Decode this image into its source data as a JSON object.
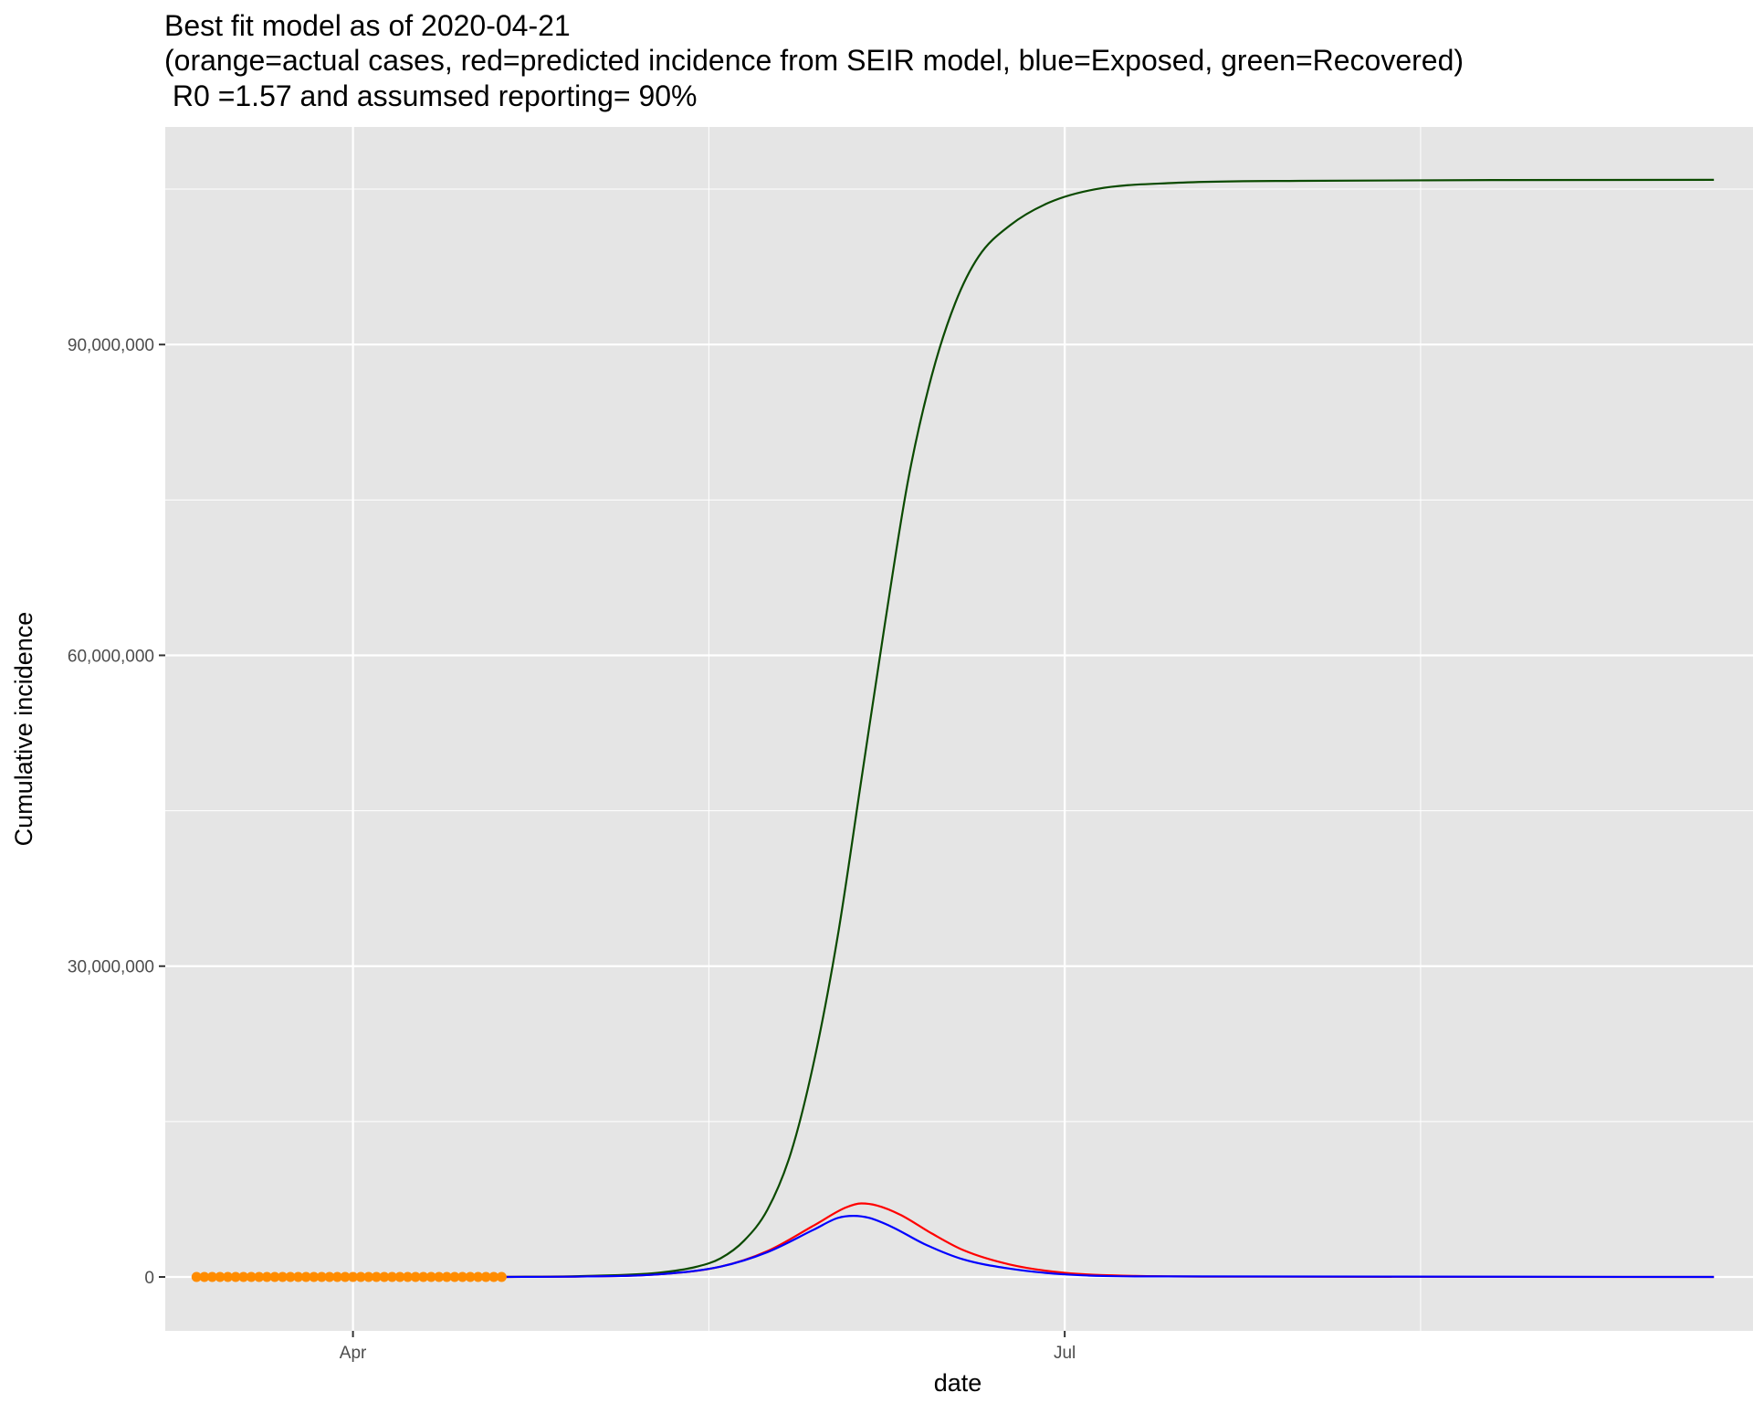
{
  "chart_data": {
    "type": "line",
    "title_lines": [
      "Best fit model as of 2020-04-21",
      "(orange=actual cases, red=predicted incidence from SEIR model, blue=Exposed, green=Recovered)",
      " R0 =1.57 and assumsed reporting= 90%"
    ],
    "xlabel": "date",
    "ylabel": "Cumulative incidence",
    "x_ticks": [
      {
        "date": "2020-04-01",
        "label": "Apr"
      },
      {
        "date": "2020-07-01",
        "label": "Jul"
      }
    ],
    "y_ticks": [
      {
        "value": 0,
        "label": "0"
      },
      {
        "value": 30000000,
        "label": "30,000,000"
      },
      {
        "value": 60000000,
        "label": "60,000,000"
      },
      {
        "value": 90000000,
        "label": "90,000,000"
      }
    ],
    "xlim": [
      "2020-03-08",
      "2020-09-27"
    ],
    "ylim": [
      -5200000,
      111000000
    ],
    "grid": true,
    "panel_background": "#e5e5e5",
    "grid_color": "#ffffff",
    "series": [
      {
        "key": "recovered",
        "kind": "line",
        "color": "#0b4a00",
        "points": [
          [
            "2020-04-19",
            0
          ],
          [
            "2020-05-01",
            100000
          ],
          [
            "2020-05-10",
            400000
          ],
          [
            "2020-05-15",
            1000000
          ],
          [
            "2020-05-18",
            1800000
          ],
          [
            "2020-05-21",
            3500000
          ],
          [
            "2020-05-24",
            6500000
          ],
          [
            "2020-05-27",
            12000000
          ],
          [
            "2020-05-30",
            21000000
          ],
          [
            "2020-06-02",
            33000000
          ],
          [
            "2020-06-05",
            48000000
          ],
          [
            "2020-06-08",
            63000000
          ],
          [
            "2020-06-11",
            77000000
          ],
          [
            "2020-06-14",
            87000000
          ],
          [
            "2020-06-17",
            94000000
          ],
          [
            "2020-06-20",
            98500000
          ],
          [
            "2020-06-24",
            101500000
          ],
          [
            "2020-06-29",
            103700000
          ],
          [
            "2020-07-05",
            105000000
          ],
          [
            "2020-07-15",
            105600000
          ],
          [
            "2020-07-31",
            105800000
          ],
          [
            "2020-09-22",
            105900000
          ]
        ]
      },
      {
        "key": "predicted",
        "kind": "line",
        "color": "#ff0000",
        "points": [
          [
            "2020-04-19",
            0
          ],
          [
            "2020-05-01",
            50000
          ],
          [
            "2020-05-10",
            250000
          ],
          [
            "2020-05-18",
            1000000
          ],
          [
            "2020-05-24",
            2500000
          ],
          [
            "2020-05-30",
            5000000
          ],
          [
            "2020-06-03",
            6700000
          ],
          [
            "2020-06-05",
            7100000
          ],
          [
            "2020-06-07",
            6900000
          ],
          [
            "2020-06-10",
            6000000
          ],
          [
            "2020-06-14",
            4200000
          ],
          [
            "2020-06-18",
            2600000
          ],
          [
            "2020-06-24",
            1200000
          ],
          [
            "2020-07-01",
            400000
          ],
          [
            "2020-07-10",
            100000
          ],
          [
            "2020-07-25",
            30000
          ],
          [
            "2020-09-22",
            0
          ]
        ]
      },
      {
        "key": "exposed",
        "kind": "line",
        "color": "#0000ff",
        "points": [
          [
            "2020-04-19",
            0
          ],
          [
            "2020-05-01",
            50000
          ],
          [
            "2020-05-10",
            250000
          ],
          [
            "2020-05-18",
            1000000
          ],
          [
            "2020-05-24",
            2400000
          ],
          [
            "2020-05-30",
            4600000
          ],
          [
            "2020-06-02",
            5700000
          ],
          [
            "2020-06-04",
            5900000
          ],
          [
            "2020-06-06",
            5700000
          ],
          [
            "2020-06-09",
            4800000
          ],
          [
            "2020-06-13",
            3200000
          ],
          [
            "2020-06-18",
            1700000
          ],
          [
            "2020-06-24",
            800000
          ],
          [
            "2020-07-01",
            250000
          ],
          [
            "2020-07-10",
            60000
          ],
          [
            "2020-09-22",
            0
          ]
        ]
      },
      {
        "key": "actual",
        "kind": "points",
        "color": "#ff8c00",
        "start": "2020-03-12",
        "end": "2020-04-20",
        "values": [
          0,
          0,
          0,
          0,
          0,
          0,
          0,
          0,
          0,
          0,
          0,
          0,
          0,
          0,
          0,
          0,
          0,
          0,
          0,
          0,
          0,
          0,
          0,
          0,
          0,
          0,
          0,
          0,
          0,
          0,
          0,
          0,
          0,
          0,
          0,
          0,
          0,
          0,
          0,
          0
        ]
      }
    ]
  }
}
